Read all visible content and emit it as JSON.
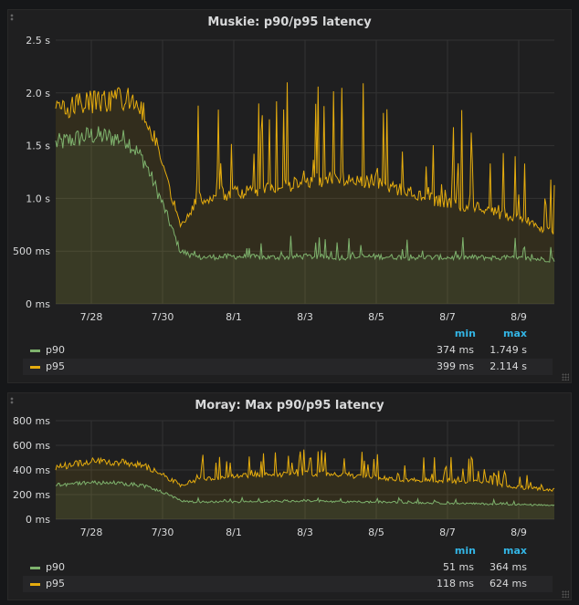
{
  "colors": {
    "p90": "#7eb26d",
    "p95": "#e5ac0e",
    "grid": "#333333",
    "axis_text": "#d8d9da",
    "legend_header": "#33b5e5"
  },
  "x_ticks": [
    "7/28",
    "7/30",
    "8/1",
    "8/3",
    "8/5",
    "8/7",
    "8/9"
  ],
  "panels": [
    {
      "title": "Muskie: p90/p95 latency",
      "legend": {
        "min_label": "min",
        "max_label": "max",
        "rows": [
          {
            "name": "p90",
            "min": "374 ms",
            "max": "1.749 s"
          },
          {
            "name": "p95",
            "min": "399 ms",
            "max": "2.114 s"
          }
        ]
      }
    },
    {
      "title": "Moray: Max p90/p95 latency",
      "legend": {
        "min_label": "min",
        "max_label": "max",
        "rows": [
          {
            "name": "p90",
            "min": "51 ms",
            "max": "364 ms"
          },
          {
            "name": "p95",
            "min": "118 ms",
            "max": "624 ms"
          }
        ]
      }
    }
  ],
  "chart_data": [
    {
      "type": "area",
      "title": "Muskie: p90/p95 latency",
      "x": [
        "7/27",
        "7/28",
        "7/29",
        "7/29 12:00",
        "7/30",
        "7/30 12:00",
        "7/31",
        "8/1",
        "8/2",
        "8/3",
        "8/4",
        "8/5",
        "8/6",
        "8/7",
        "8/8",
        "8/9",
        "8/10"
      ],
      "x_ticks": [
        "7/28",
        "7/30",
        "8/1",
        "8/3",
        "8/5",
        "8/7",
        "8/9"
      ],
      "y_ticks": [
        "0 ms",
        "500 ms",
        "1.0 s",
        "1.5 s",
        "2.0 s",
        "2.5 s"
      ],
      "ylim": [
        0,
        2500
      ],
      "y_unit": "ms",
      "grid": true,
      "legend_position": "bottom",
      "series": [
        {
          "name": "p90",
          "values": [
            1520,
            1600,
            1560,
            1350,
            950,
            500,
            440,
            450,
            440,
            450,
            440,
            450,
            440,
            440,
            440,
            430,
            420
          ]
        },
        {
          "name": "p95",
          "values": [
            1850,
            1920,
            1940,
            1800,
            1350,
            750,
            1000,
            1050,
            1100,
            1150,
            1200,
            1150,
            1050,
            950,
            900,
            800,
            680
          ]
        }
      ]
    },
    {
      "type": "area",
      "title": "Moray: Max p90/p95 latency",
      "x": [
        "7/27",
        "7/28",
        "7/29",
        "7/29 12:00",
        "7/30",
        "7/30 12:00",
        "7/31",
        "8/1",
        "8/2",
        "8/3",
        "8/4",
        "8/5",
        "8/6",
        "8/7",
        "8/8",
        "8/9",
        "8/10"
      ],
      "x_ticks": [
        "7/28",
        "7/30",
        "8/1",
        "8/3",
        "8/5",
        "8/7",
        "8/9"
      ],
      "y_ticks": [
        "0 ms",
        "200 ms",
        "400 ms",
        "600 ms",
        "800 ms"
      ],
      "ylim": [
        0,
        800
      ],
      "y_unit": "ms",
      "grid": true,
      "legend_position": "bottom",
      "series": [
        {
          "name": "p90",
          "values": [
            280,
            300,
            290,
            270,
            220,
            150,
            140,
            140,
            145,
            150,
            140,
            140,
            135,
            130,
            125,
            120,
            110
          ]
        },
        {
          "name": "p95",
          "values": [
            420,
            470,
            460,
            430,
            360,
            280,
            320,
            350,
            360,
            370,
            360,
            340,
            320,
            310,
            300,
            260,
            240
          ]
        }
      ]
    }
  ]
}
